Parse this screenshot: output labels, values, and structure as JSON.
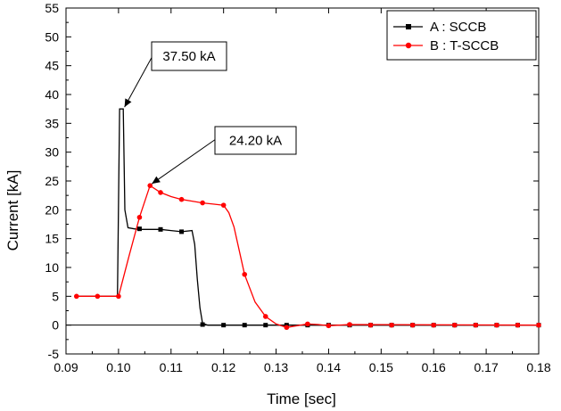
{
  "chart_data": {
    "type": "line",
    "title": "",
    "xlabel": "Time [sec]",
    "ylabel": "Current [kA]",
    "xlim": [
      0.09,
      0.18
    ],
    "ylim": [
      -5,
      55
    ],
    "xticks": [
      "0.09",
      "0.10",
      "0.11",
      "0.12",
      "0.13",
      "0.14",
      "0.15",
      "0.16",
      "0.17",
      "0.18"
    ],
    "yticks": [
      "-5",
      "0",
      "5",
      "10",
      "15",
      "20",
      "25",
      "30",
      "35",
      "40",
      "45",
      "50",
      "55"
    ],
    "grid": false,
    "legend_position": "top-right",
    "series": [
      {
        "name": "A : SCCB",
        "color": "#000000",
        "marker": "square",
        "line": [
          [
            0.092,
            5
          ],
          [
            0.0998,
            5
          ],
          [
            0.1002,
            37.5
          ],
          [
            0.1009,
            37.5
          ],
          [
            0.1012,
            20
          ],
          [
            0.1018,
            16.9
          ],
          [
            0.103,
            16.7
          ],
          [
            0.104,
            16.6
          ],
          [
            0.106,
            16.6
          ],
          [
            0.108,
            16.6
          ],
          [
            0.11,
            16.4
          ],
          [
            0.112,
            16.2
          ],
          [
            0.114,
            16.4
          ],
          [
            0.1145,
            14
          ],
          [
            0.115,
            8
          ],
          [
            0.1155,
            3
          ],
          [
            0.116,
            0.3
          ],
          [
            0.117,
            0
          ],
          [
            0.18,
            0
          ]
        ],
        "markers": [
          [
            0.104,
            16.7
          ],
          [
            0.108,
            16.6
          ],
          [
            0.112,
            16.2
          ],
          [
            0.116,
            0.1
          ],
          [
            0.12,
            0
          ],
          [
            0.124,
            0
          ],
          [
            0.128,
            0
          ],
          [
            0.132,
            0
          ],
          [
            0.136,
            0
          ],
          [
            0.14,
            0
          ],
          [
            0.144,
            0
          ],
          [
            0.148,
            0
          ],
          [
            0.152,
            0
          ],
          [
            0.156,
            0
          ],
          [
            0.16,
            0
          ],
          [
            0.164,
            0
          ],
          [
            0.168,
            0
          ],
          [
            0.172,
            0
          ],
          [
            0.176,
            0
          ],
          [
            0.18,
            0
          ]
        ]
      },
      {
        "name": "B : T-SCCB",
        "color": "#ff0000",
        "marker": "circle",
        "line": [
          [
            0.092,
            5
          ],
          [
            0.1,
            5
          ],
          [
            0.102,
            12
          ],
          [
            0.104,
            18.7
          ],
          [
            0.106,
            24.2
          ],
          [
            0.108,
            23.0
          ],
          [
            0.11,
            22.3
          ],
          [
            0.112,
            21.8
          ],
          [
            0.114,
            21.5
          ],
          [
            0.116,
            21.2
          ],
          [
            0.118,
            21.0
          ],
          [
            0.12,
            20.8
          ],
          [
            0.121,
            19.5
          ],
          [
            0.122,
            17.0
          ],
          [
            0.124,
            8.8
          ],
          [
            0.126,
            4.0
          ],
          [
            0.128,
            1.5
          ],
          [
            0.13,
            0.2
          ],
          [
            0.132,
            -0.4
          ],
          [
            0.134,
            -0.1
          ],
          [
            0.136,
            0.2
          ],
          [
            0.138,
            0.1
          ],
          [
            0.14,
            -0.1
          ],
          [
            0.142,
            0
          ],
          [
            0.144,
            0.1
          ],
          [
            0.18,
            0
          ]
        ],
        "markers": [
          [
            0.092,
            5
          ],
          [
            0.096,
            5
          ],
          [
            0.1,
            5
          ],
          [
            0.104,
            18.7
          ],
          [
            0.106,
            24.2
          ],
          [
            0.108,
            23.0
          ],
          [
            0.112,
            21.8
          ],
          [
            0.116,
            21.2
          ],
          [
            0.12,
            20.8
          ],
          [
            0.124,
            8.8
          ],
          [
            0.128,
            1.5
          ],
          [
            0.132,
            -0.4
          ],
          [
            0.136,
            0.2
          ],
          [
            0.14,
            -0.1
          ],
          [
            0.144,
            0.1
          ],
          [
            0.148,
            0
          ],
          [
            0.152,
            0
          ],
          [
            0.156,
            0
          ],
          [
            0.16,
            0
          ],
          [
            0.164,
            0
          ],
          [
            0.168,
            0
          ],
          [
            0.172,
            0
          ],
          [
            0.176,
            0
          ],
          [
            0.18,
            0
          ]
        ]
      }
    ],
    "annotations": [
      {
        "text": "37.50 kA",
        "point": [
          0.1008,
          37.5
        ]
      },
      {
        "text": "24.20 kA",
        "point": [
          0.106,
          24.2
        ]
      }
    ]
  }
}
